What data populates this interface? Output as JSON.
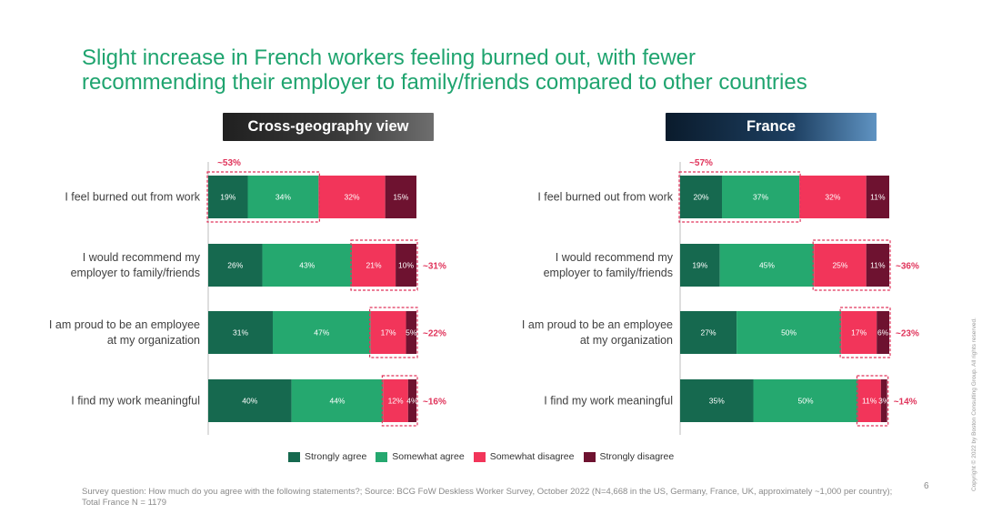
{
  "title": {
    "line1": "Slight increase in French workers feeling burned out, with fewer",
    "line2": "recommending their employer to family/friends compared to other countries"
  },
  "panels": {
    "left_header": "Cross-geography view",
    "right_header": "France"
  },
  "colors": {
    "strongly_agree": "#16694f",
    "somewhat_agree": "#25a86f",
    "somewhat_disagree": "#f2355a",
    "strongly_disagree": "#6e1230",
    "highlight": "#e0335a"
  },
  "legend": [
    {
      "label": "Strongly agree",
      "color": "#16694f"
    },
    {
      "label": "Somewhat agree",
      "color": "#25a86f"
    },
    {
      "label": "Somewhat disagree",
      "color": "#f2355a"
    },
    {
      "label": "Strongly disagree",
      "color": "#6e1230"
    }
  ],
  "chart_data": [
    {
      "type": "bar",
      "orientation": "horizontal",
      "stacked": true,
      "title": "Cross-geography view",
      "categories": [
        "I feel burned out from work",
        "I would recommend my employer to family/friends",
        "I am proud to be an employee at my organization",
        "I find my work meaningful"
      ],
      "category_lines": [
        [
          "I feel burned out from work"
        ],
        [
          "I would recommend my",
          "employer to family/friends"
        ],
        [
          "I am proud to be an employee",
          "at my organization"
        ],
        [
          "I find my work meaningful"
        ]
      ],
      "series": [
        {
          "name": "Strongly agree",
          "values": [
            19,
            26,
            31,
            40
          ]
        },
        {
          "name": "Somewhat agree",
          "values": [
            34,
            43,
            47,
            44
          ]
        },
        {
          "name": "Somewhat disagree",
          "values": [
            32,
            21,
            17,
            12
          ]
        },
        {
          "name": "Strongly disagree",
          "values": [
            15,
            10,
            5,
            4
          ]
        }
      ],
      "callouts": [
        {
          "category_index": 0,
          "label": "~53%",
          "span": "agree"
        },
        {
          "category_index": 1,
          "label": "~31%",
          "span": "disagree"
        },
        {
          "category_index": 2,
          "label": "~22%",
          "span": "disagree"
        },
        {
          "category_index": 3,
          "label": "~16%",
          "span": "disagree"
        }
      ],
      "xlim": [
        0,
        100
      ]
    },
    {
      "type": "bar",
      "orientation": "horizontal",
      "stacked": true,
      "title": "France",
      "categories": [
        "I feel burned out from work",
        "I would recommend my employer to family/friends",
        "I am proud to be an employee at my organization",
        "I find my work meaningful"
      ],
      "category_lines": [
        [
          "I feel burned out from work"
        ],
        [
          "I would recommend my",
          "employer to family/friends"
        ],
        [
          "I am proud to be an employee",
          "at my organization"
        ],
        [
          "I find my work meaningful"
        ]
      ],
      "series": [
        {
          "name": "Strongly agree",
          "values": [
            20,
            19,
            27,
            35
          ]
        },
        {
          "name": "Somewhat agree",
          "values": [
            37,
            45,
            50,
            50
          ]
        },
        {
          "name": "Somewhat disagree",
          "values": [
            32,
            25,
            17,
            11
          ]
        },
        {
          "name": "Strongly disagree",
          "values": [
            11,
            11,
            6,
            3
          ]
        }
      ],
      "callouts": [
        {
          "category_index": 0,
          "label": "~57%",
          "span": "agree"
        },
        {
          "category_index": 1,
          "label": "~36%",
          "span": "disagree"
        },
        {
          "category_index": 2,
          "label": "~23%",
          "span": "disagree"
        },
        {
          "category_index": 3,
          "label": "~14%",
          "span": "disagree"
        }
      ],
      "xlim": [
        0,
        100
      ]
    }
  ],
  "footnote": "Survey question: How much do you agree with the following statements?; Source: BCG FoW Deskless Worker Survey, October 2022  (N=4,668 in the US, Germany, France, UK, approximately ~1,000 per country); Total France N = 1179",
  "page_number": "6",
  "copyright": "Copyright © 2022 by Boston Consulting Group. All rights reserved."
}
